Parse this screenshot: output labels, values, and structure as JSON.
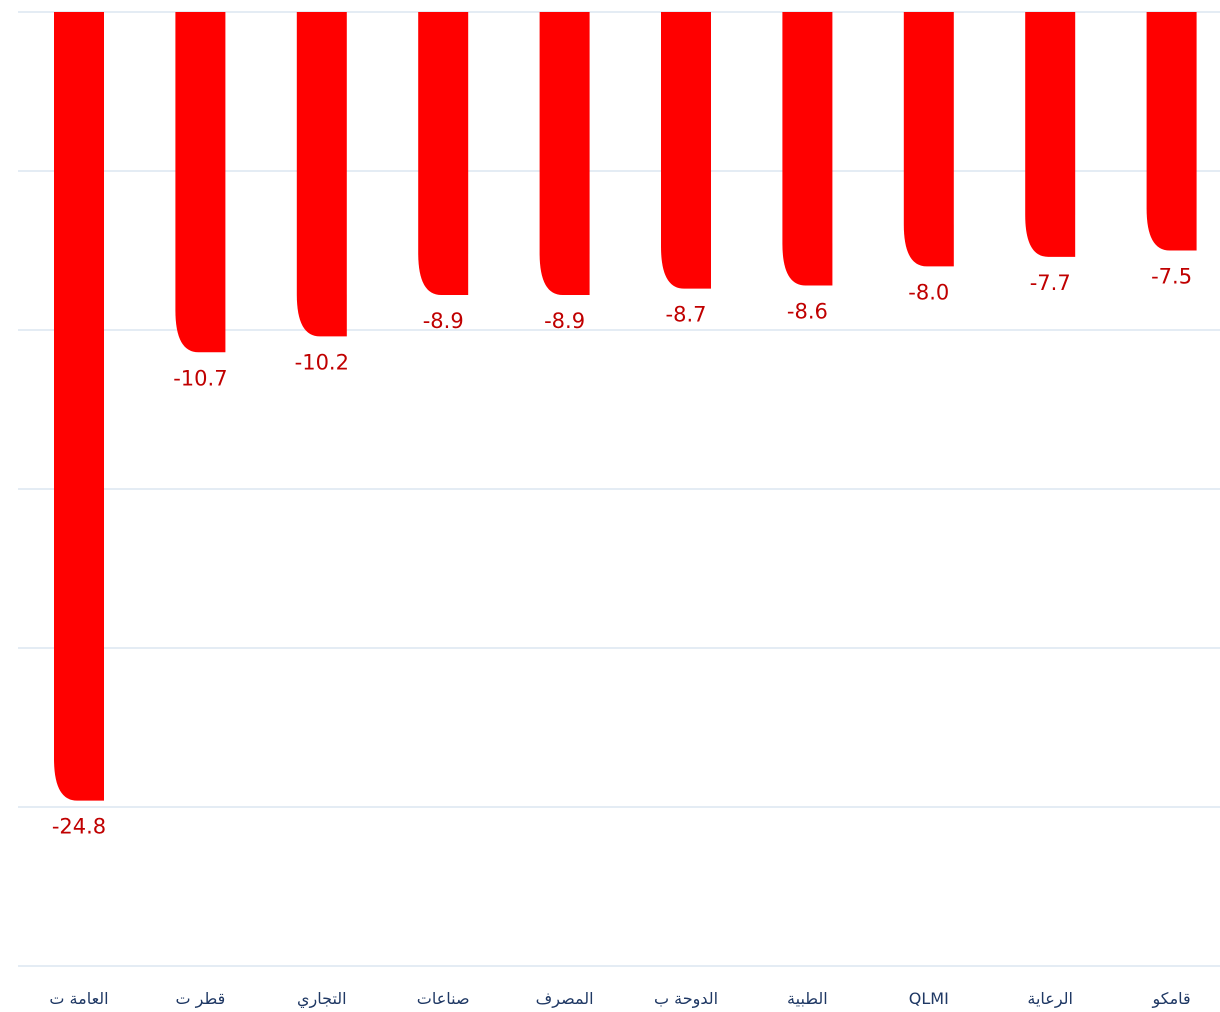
{
  "chart_data": {
    "type": "bar",
    "title": "",
    "xlabel": "",
    "ylabel": "",
    "categories": [
      "العامة ت",
      "قطر ت",
      "التجاري",
      "صناعات",
      "المصرف",
      "الدوحة ب",
      "الطبية",
      "QLMI",
      "الرعاية",
      "قامكو"
    ],
    "values": [
      -24.8,
      -10.7,
      -10.2,
      -8.9,
      -8.9,
      -8.7,
      -8.6,
      -8.0,
      -7.7,
      -7.5
    ],
    "value_labels": [
      "-24.8",
      "-10.7",
      "-10.2",
      "-8.9",
      "-8.9",
      "-8.7",
      "-8.6",
      "-8.0",
      "-7.7",
      "-7.5"
    ],
    "ylim": [
      -30,
      0
    ],
    "grid": true,
    "legend": "none",
    "colors": {
      "bar": "#ff0000",
      "value_label": "#c00000",
      "category_label": "#1f3864",
      "gridline": "#dbe5f1"
    }
  }
}
